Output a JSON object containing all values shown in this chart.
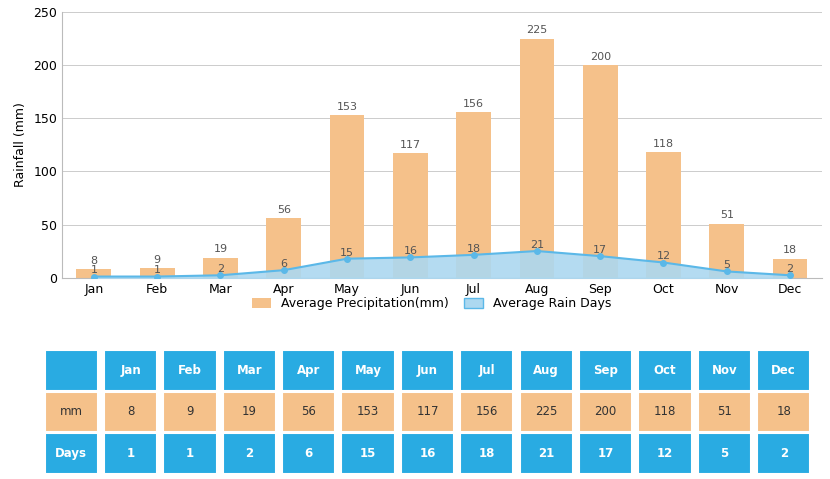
{
  "months": [
    "Jan",
    "Feb",
    "Mar",
    "Apr",
    "May",
    "Jun",
    "Jul",
    "Aug",
    "Sep",
    "Oct",
    "Nov",
    "Dec"
  ],
  "precipitation_mm": [
    8,
    9,
    19,
    56,
    153,
    117,
    156,
    225,
    200,
    118,
    51,
    18
  ],
  "rain_days": [
    1,
    1,
    2,
    6,
    15,
    16,
    18,
    21,
    17,
    12,
    5,
    2
  ],
  "bar_color": "#F5C18A",
  "area_color": "#ACD8F0",
  "area_line_color": "#5BB8E8",
  "ylabel": "Rainfall (mm)",
  "ylim": [
    0,
    250
  ],
  "yticks": [
    0,
    50,
    100,
    150,
    200,
    250
  ],
  "grid_color": "#CCCCCC",
  "legend_bar_label": "Average Precipitation(mm)",
  "legend_area_label": "Average Rain Days",
  "table_header_color": "#29ABE2",
  "table_row1_color": "#F5C18A",
  "table_row2_color": "#29ABE2",
  "table_header_text_color": "#FFFFFF",
  "table_cell_text_color": "#333333",
  "table_row2_text_color": "#FFFFFF",
  "value_label_color_bar": "#555555",
  "value_label_color_days": "#555555",
  "background_color": "#FFFFFF",
  "days_scale_factor": 1.2,
  "bar_width": 0.55
}
